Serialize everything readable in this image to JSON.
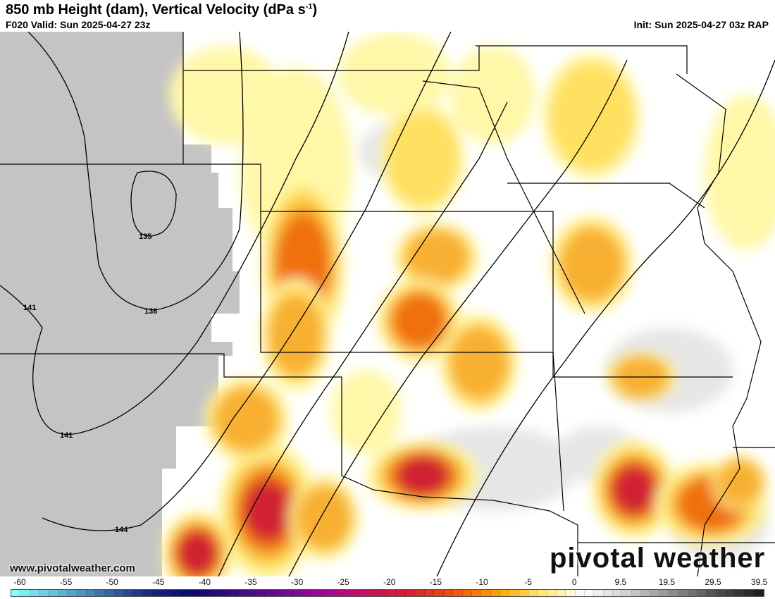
{
  "header": {
    "title": "850 mb Height (dam), Vertical Velocity (dPa s",
    "title_sup": "-1",
    "title_end": ")",
    "valid": "F020 Valid: Sun 2025-04-27 23z",
    "init": "Init: Sun 2025-04-27 03z RAP"
  },
  "map": {
    "contour_labels": [
      "135",
      "138",
      "141",
      "141",
      "144"
    ],
    "terrain_color": "#c4c4c4",
    "ascent_colors": [
      "#fff8a8",
      "#ffe060",
      "#f8b030",
      "#f07010",
      "#d02030"
    ],
    "descent_color": "#e8e8e8"
  },
  "watermark": "www.pivotalweather.com",
  "logo": "pivotal weather",
  "colorbar": {
    "ticks": [
      "-60",
      "-55",
      "-50",
      "-45",
      "-40",
      "-35",
      "-30",
      "-25",
      "-20",
      "-15",
      "-10",
      "-5",
      "0",
      "9.5",
      "19.5",
      "29.5",
      "39.5"
    ],
    "stops": [
      "#80ffff",
      "#60b8d8",
      "#3a70a8",
      "#1a2a80",
      "#0a0a6a",
      "#3a0a8a",
      "#6a0a98",
      "#a00898",
      "#c81060",
      "#d82030",
      "#f05010",
      "#ffa000",
      "#ffe870",
      "#ffffff",
      "#d0d0d0",
      "#909090",
      "#505050",
      "#202020"
    ]
  }
}
